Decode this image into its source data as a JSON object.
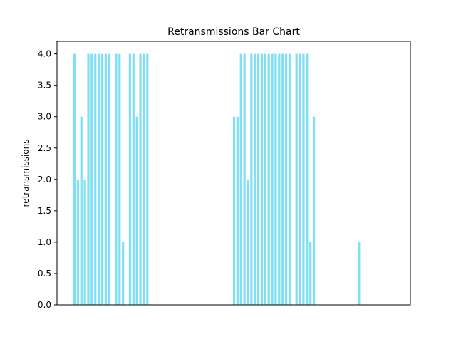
{
  "chart_data": {
    "type": "bar",
    "title": "Retransmissions Bar Chart",
    "xlabel": "",
    "ylabel": "retransmissions",
    "ylim": [
      0,
      4.2
    ],
    "yticks": [
      "0.0",
      "0.5",
      "1.0",
      "1.5",
      "2.0",
      "2.5",
      "3.0",
      "3.5",
      "4.0"
    ],
    "grid": false,
    "bar_color": "#7fdff5",
    "values": [
      4,
      2,
      3,
      2,
      4,
      4,
      4,
      4,
      4,
      4,
      4,
      0,
      4,
      4,
      1,
      0,
      4,
      4,
      3,
      4,
      4,
      4,
      0,
      0,
      0,
      0,
      0,
      0,
      0,
      0,
      0,
      0,
      0,
      0,
      0,
      0,
      0,
      0,
      0,
      0,
      0,
      0,
      0,
      0,
      0,
      0,
      3,
      3,
      4,
      4,
      2,
      4,
      4,
      4,
      4,
      4,
      4,
      4,
      4,
      4,
      4,
      4,
      4,
      0,
      4,
      4,
      4,
      4,
      1,
      3,
      0,
      0,
      0,
      0,
      0,
      0,
      0,
      0,
      0,
      0,
      0,
      0,
      1
    ]
  }
}
